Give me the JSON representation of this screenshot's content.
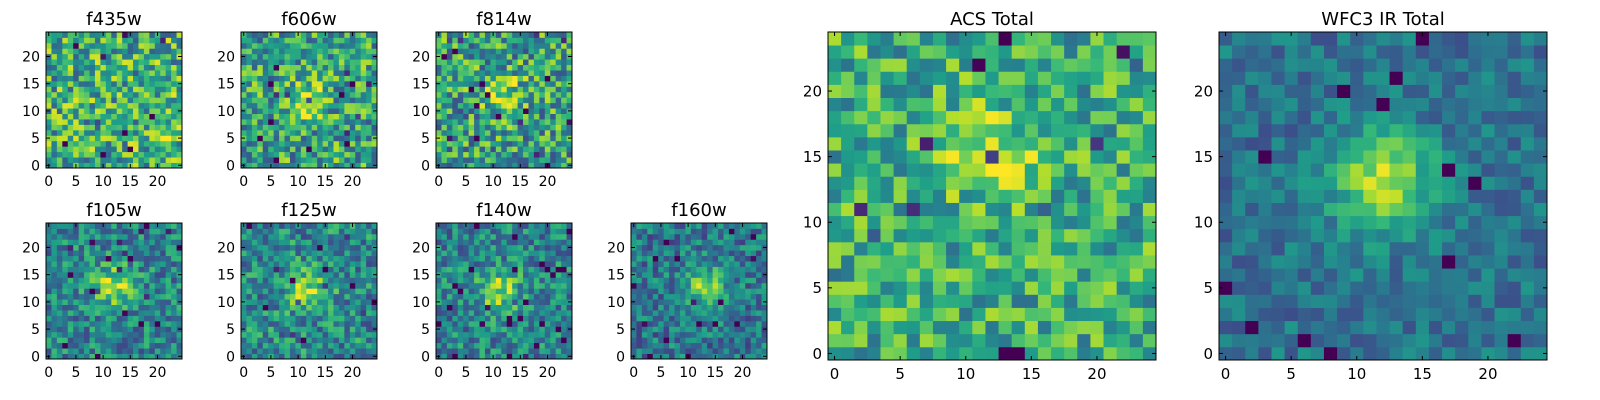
{
  "chart_data": [
    {
      "type": "heatmap",
      "title": "f435w",
      "x_ticks": [
        "0",
        "5",
        "10",
        "15",
        "20"
      ],
      "y_ticks": [
        "0",
        "5",
        "10",
        "15",
        "20"
      ],
      "xlim": [
        -0.5,
        24.5
      ],
      "ylim": [
        -0.5,
        24.5
      ],
      "grid_size": 25,
      "colormap": "viridis",
      "peak": [
        21,
        7
      ],
      "peak_strength": 0.15,
      "noise": 0.42,
      "base": 0.62,
      "seed": 11
    },
    {
      "type": "heatmap",
      "title": "f606w",
      "x_ticks": [
        "0",
        "5",
        "10",
        "15",
        "20"
      ],
      "y_ticks": [
        "0",
        "5",
        "10",
        "15",
        "20"
      ],
      "xlim": [
        -0.5,
        24.5
      ],
      "ylim": [
        -0.5,
        24.5
      ],
      "grid_size": 25,
      "colormap": "viridis",
      "peak": [
        11,
        12
      ],
      "peak_strength": 0.3,
      "noise": 0.4,
      "base": 0.58,
      "seed": 23
    },
    {
      "type": "heatmap",
      "title": "f814w",
      "x_ticks": [
        "0",
        "5",
        "10",
        "15",
        "20"
      ],
      "y_ticks": [
        "0",
        "5",
        "10",
        "15",
        "20"
      ],
      "xlim": [
        -0.5,
        24.5
      ],
      "ylim": [
        -0.5,
        24.5
      ],
      "grid_size": 25,
      "colormap": "viridis",
      "peak": [
        12,
        13
      ],
      "peak_strength": 0.3,
      "noise": 0.42,
      "base": 0.56,
      "seed": 37
    },
    {
      "type": "heatmap",
      "title": "f105w",
      "x_ticks": [
        "0",
        "5",
        "10",
        "15",
        "20"
      ],
      "y_ticks": [
        "0",
        "5",
        "10",
        "15",
        "20"
      ],
      "xlim": [
        -0.5,
        24.5
      ],
      "ylim": [
        -0.5,
        24.5
      ],
      "grid_size": 25,
      "colormap": "viridis",
      "peak": [
        12,
        13
      ],
      "peak_strength": 0.4,
      "noise": 0.3,
      "base": 0.45,
      "seed": 41
    },
    {
      "type": "heatmap",
      "title": "f125w",
      "x_ticks": [
        "0",
        "5",
        "10",
        "15",
        "20"
      ],
      "y_ticks": [
        "0",
        "5",
        "10",
        "15",
        "20"
      ],
      "xlim": [
        -0.5,
        24.5
      ],
      "ylim": [
        -0.5,
        24.5
      ],
      "grid_size": 25,
      "colormap": "viridis",
      "peak": [
        12,
        12
      ],
      "peak_strength": 0.38,
      "noise": 0.32,
      "base": 0.47,
      "seed": 53
    },
    {
      "type": "heatmap",
      "title": "f140w",
      "x_ticks": [
        "0",
        "5",
        "10",
        "15",
        "20"
      ],
      "y_ticks": [
        "0",
        "5",
        "10",
        "15",
        "20"
      ],
      "xlim": [
        -0.5,
        24.5
      ],
      "ylim": [
        -0.5,
        24.5
      ],
      "grid_size": 25,
      "colormap": "viridis",
      "peak": [
        11,
        12
      ],
      "peak_strength": 0.4,
      "noise": 0.3,
      "base": 0.45,
      "seed": 67
    },
    {
      "type": "heatmap",
      "title": "f160w",
      "x_ticks": [
        "0",
        "5",
        "10",
        "15",
        "20"
      ],
      "y_ticks": [
        "0",
        "5",
        "10",
        "15",
        "20"
      ],
      "xlim": [
        -0.5,
        24.5
      ],
      "ylim": [
        -0.5,
        24.5
      ],
      "grid_size": 25,
      "colormap": "viridis",
      "peak": [
        13,
        13
      ],
      "peak_strength": 0.42,
      "noise": 0.28,
      "base": 0.4,
      "seed": 79
    },
    {
      "type": "heatmap",
      "title": "ACS Total",
      "x_ticks": [
        "0",
        "5",
        "10",
        "15",
        "20"
      ],
      "y_ticks": [
        "0",
        "5",
        "10",
        "15",
        "20"
      ],
      "xlim": [
        -0.5,
        24.5
      ],
      "ylim": [
        -0.5,
        24.5
      ],
      "grid_size": 25,
      "colormap": "viridis",
      "peak": [
        12,
        15
      ],
      "peak_strength": 0.22,
      "noise": 0.32,
      "base": 0.62,
      "seed": 97
    },
    {
      "type": "heatmap",
      "title": "WFC3 IR Total",
      "x_ticks": [
        "0",
        "5",
        "10",
        "15",
        "20"
      ],
      "y_ticks": [
        "0",
        "5",
        "10",
        "15",
        "20"
      ],
      "xlim": [
        -0.5,
        24.5
      ],
      "ylim": [
        -0.5,
        24.5
      ],
      "grid_size": 25,
      "colormap": "viridis",
      "peak": [
        12,
        13
      ],
      "peak_strength": 0.55,
      "noise": 0.18,
      "base": 0.38,
      "seed": 113
    }
  ]
}
